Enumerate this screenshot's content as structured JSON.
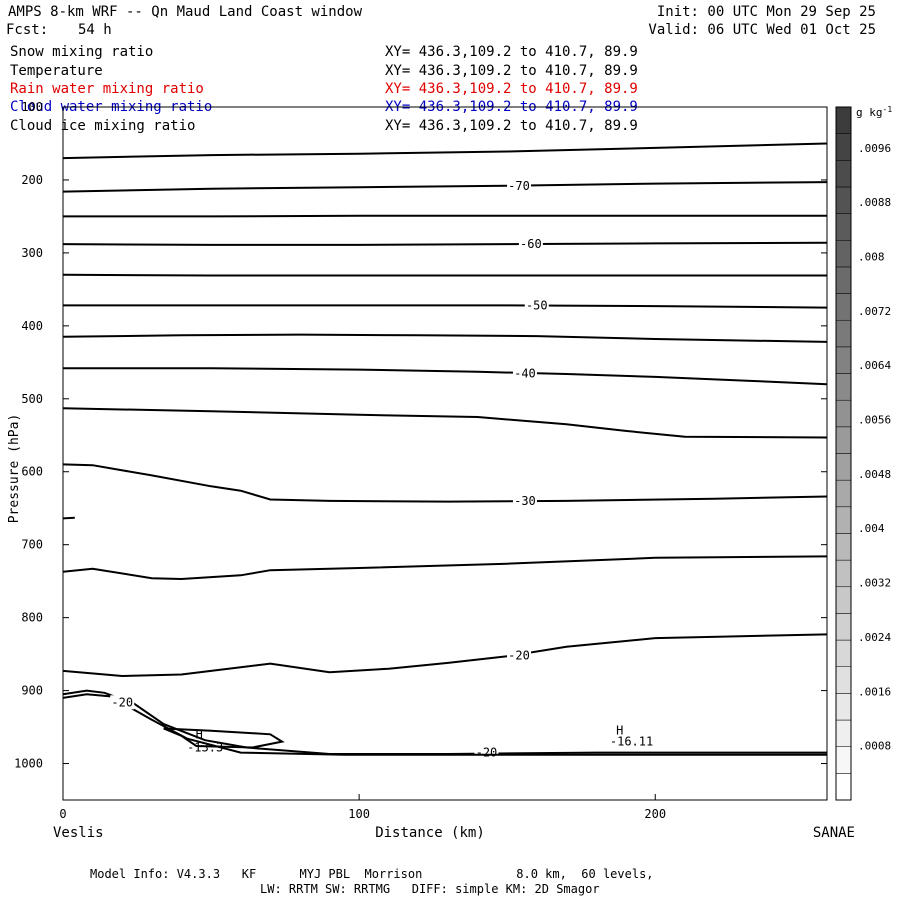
{
  "header": {
    "title": "AMPS 8-km WRF -- Qn Maud Land Coast window",
    "init": "Init: 00 UTC Mon 29 Sep 25",
    "fcst_label": "Fcst:",
    "fcst_value": "54 h",
    "valid": "Valid: 06 UTC Wed 01 Oct 25"
  },
  "fields": [
    {
      "name": "Snow mixing ratio",
      "xy": "XY= 436.3,109.2 to 410.7, 89.9",
      "color": "#000000"
    },
    {
      "name": "Temperature",
      "xy": "XY= 436.3,109.2 to 410.7, 89.9",
      "color": "#000000"
    },
    {
      "name": "Rain water mixing ratio",
      "xy": "XY= 436.3,109.2 to 410.7, 89.9",
      "color": "#e00000"
    },
    {
      "name": "Cloud water mixing ratio",
      "xy": "XY= 436.3,109.2 to 410.7, 89.9",
      "color": "#0000c0"
    },
    {
      "name": "Cloud ice mixing ratio",
      "xy": "XY= 436.3,109.2 to 410.7, 89.9",
      "color": "#000000"
    }
  ],
  "footer": {
    "line1": "Model Info: V4.3.3   KF      MYJ PBL  Morrison             8.0 km,  60 levels,",
    "line2": "LW: RRTM SW: RRTMG   DIFF: simple KM: 2D Smagor"
  },
  "chart_data": {
    "type": "line",
    "xlabel": "Distance (km)",
    "ylabel": "Pressure (hPa)",
    "xlim": [
      0,
      258
    ],
    "ylim": [
      1050,
      100
    ],
    "x_ticks": [
      0,
      100,
      200
    ],
    "y_ticks": [
      100,
      200,
      300,
      400,
      500,
      600,
      700,
      800,
      900,
      1000
    ],
    "x_endpoints": {
      "left": "Veslis",
      "right": "SANAE"
    },
    "colorbar": {
      "unit": "g kg",
      "unit_exp": "-1",
      "min": 0,
      "max": 0.0102,
      "step": 0.0004,
      "labels": [
        ".0096",
        ".0088",
        ".008",
        ".0072",
        ".0064",
        ".0056",
        ".0048",
        ".004",
        ".0032",
        ".0024",
        ".0016",
        ".0008"
      ]
    },
    "contours": [
      {
        "points": [
          [
            0,
            170
          ],
          [
            50,
            166
          ],
          [
            100,
            164
          ],
          [
            150,
            161
          ],
          [
            200,
            156
          ],
          [
            258,
            150
          ]
        ]
      },
      {
        "points": [
          [
            0,
            216
          ],
          [
            50,
            212
          ],
          [
            100,
            210
          ],
          [
            150,
            208
          ],
          [
            200,
            205
          ],
          [
            258,
            203
          ]
        ],
        "label": "-70",
        "label_at": [
          154,
          208
        ]
      },
      {
        "points": [
          [
            0,
            250
          ],
          [
            50,
            250
          ],
          [
            100,
            249
          ],
          [
            150,
            249
          ],
          [
            200,
            249
          ],
          [
            258,
            249
          ]
        ]
      },
      {
        "points": [
          [
            0,
            288
          ],
          [
            50,
            289
          ],
          [
            100,
            289
          ],
          [
            150,
            288
          ],
          [
            200,
            287
          ],
          [
            258,
            286
          ]
        ],
        "label": "-60",
        "label_at": [
          158,
          288
        ]
      },
      {
        "points": [
          [
            0,
            330
          ],
          [
            50,
            331
          ],
          [
            100,
            331
          ],
          [
            150,
            331
          ],
          [
            200,
            331
          ],
          [
            258,
            331
          ]
        ]
      },
      {
        "points": [
          [
            0,
            372
          ],
          [
            50,
            372
          ],
          [
            100,
            372
          ],
          [
            150,
            372
          ],
          [
            200,
            373
          ],
          [
            258,
            375
          ]
        ],
        "label": "-50",
        "label_at": [
          160,
          372
        ]
      },
      {
        "points": [
          [
            0,
            415
          ],
          [
            40,
            413
          ],
          [
            80,
            412
          ],
          [
            120,
            413
          ],
          [
            160,
            414
          ],
          [
            200,
            418
          ],
          [
            258,
            422
          ]
        ]
      },
      {
        "points": [
          [
            0,
            458
          ],
          [
            50,
            458
          ],
          [
            100,
            460
          ],
          [
            140,
            463
          ],
          [
            170,
            466
          ],
          [
            200,
            470
          ],
          [
            230,
            475
          ],
          [
            258,
            480
          ]
        ],
        "label": "-40",
        "label_at": [
          156,
          465
        ]
      },
      {
        "points": [
          [
            0,
            513
          ],
          [
            50,
            517
          ],
          [
            100,
            522
          ],
          [
            140,
            525
          ],
          [
            170,
            535
          ],
          [
            190,
            544
          ],
          [
            210,
            552
          ],
          [
            258,
            553
          ]
        ]
      },
      {
        "points": [
          [
            0,
            590
          ],
          [
            10,
            591
          ],
          [
            30,
            605
          ],
          [
            50,
            620
          ],
          [
            60,
            626
          ],
          [
            70,
            638
          ],
          [
            90,
            640
          ],
          [
            130,
            641
          ],
          [
            170,
            640
          ],
          [
            220,
            637
          ],
          [
            258,
            634
          ]
        ],
        "label": "-30",
        "label_at": [
          156,
          640
        ]
      },
      {
        "points": [
          [
            0,
            664
          ],
          [
            4,
            663
          ]
        ]
      },
      {
        "points": [
          [
            0,
            737
          ],
          [
            10,
            733
          ],
          [
            30,
            746
          ],
          [
            40,
            747
          ],
          [
            60,
            742
          ],
          [
            70,
            735
          ],
          [
            100,
            732
          ],
          [
            150,
            726
          ],
          [
            200,
            718
          ],
          [
            258,
            716
          ]
        ]
      },
      {
        "points": [
          [
            0,
            873
          ],
          [
            20,
            880
          ],
          [
            40,
            878
          ],
          [
            60,
            868
          ],
          [
            70,
            863
          ],
          [
            90,
            875
          ],
          [
            110,
            870
          ],
          [
            130,
            862
          ],
          [
            150,
            853
          ],
          [
            170,
            840
          ],
          [
            200,
            828
          ],
          [
            258,
            823
          ]
        ],
        "label": "-20",
        "label_at": [
          154,
          852
        ]
      },
      {
        "points": [
          [
            0,
            905
          ],
          [
            8,
            900
          ],
          [
            14,
            903
          ],
          [
            24,
            918
          ],
          [
            34,
            946
          ],
          [
            48,
            968
          ],
          [
            62,
            978
          ],
          [
            90,
            987
          ],
          [
            130,
            987
          ],
          [
            180,
            985
          ],
          [
            258,
            985
          ]
        ],
        "label": "-20",
        "label_at": [
          143,
          985
        ]
      },
      {
        "points": [
          [
            0,
            910
          ],
          [
            8,
            905
          ],
          [
            16,
            908
          ],
          [
            30,
            940
          ],
          [
            42,
            966
          ],
          [
            60,
            985
          ],
          [
            95,
            988
          ],
          [
            150,
            988
          ],
          [
            200,
            988
          ],
          [
            258,
            988
          ]
        ],
        "label": "-20",
        "label_at": [
          20,
          916
        ]
      },
      {
        "points": [
          [
            34,
            952
          ],
          [
            50,
            955
          ],
          [
            70,
            960
          ],
          [
            74,
            970
          ],
          [
            64,
            978
          ],
          [
            45,
            976
          ],
          [
            40,
            962
          ]
        ],
        "closed": true
      }
    ],
    "annotations": [
      {
        "text": "H",
        "x": 46,
        "y": 960
      },
      {
        "text": "-13.3",
        "x": 48,
        "y": 978
      },
      {
        "text": "H",
        "x": 188,
        "y": 955
      },
      {
        "text": "-16.11",
        "x": 192,
        "y": 970
      }
    ]
  }
}
